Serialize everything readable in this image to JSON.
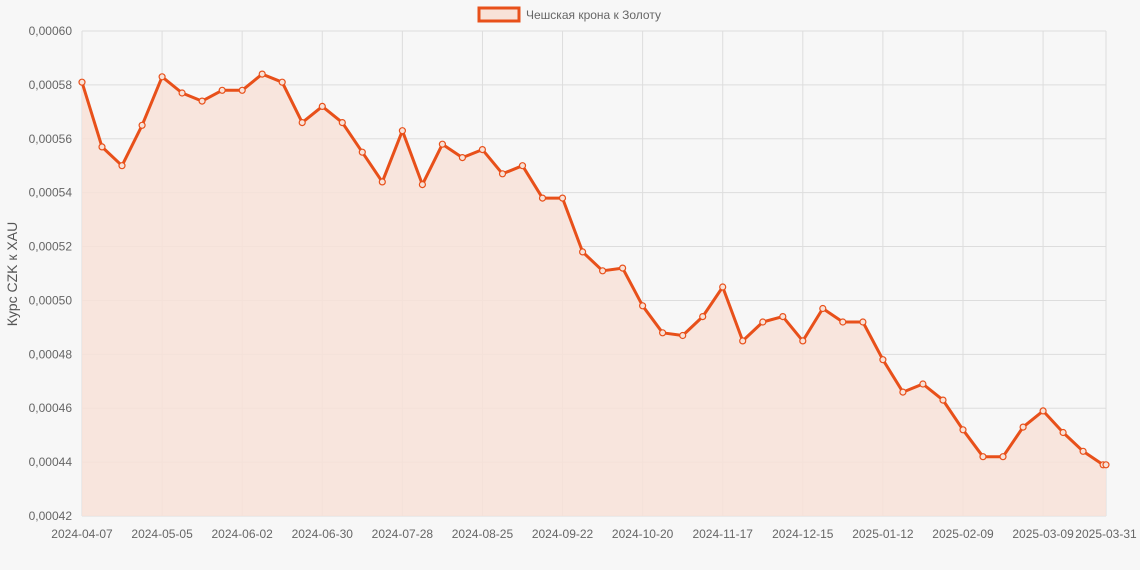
{
  "chart_data": {
    "type": "area",
    "title": "",
    "xlabel": "",
    "ylabel": "Курс CZK к XAU",
    "ylim": [
      0.00042,
      0.0006
    ],
    "y_ticks": [
      "0,00042",
      "0,00044",
      "0,00046",
      "0,00048",
      "0,00050",
      "0,00052",
      "0,00054",
      "0,00056",
      "0,00058",
      "0,00060"
    ],
    "x_tick_labels": [
      "2024-04-07",
      "2024-05-05",
      "2024-06-02",
      "2024-06-30",
      "2024-07-28",
      "2024-08-25",
      "2024-09-22",
      "2024-10-20",
      "2024-11-17",
      "2024-12-15",
      "2025-01-12",
      "2025-02-09",
      "2025-03-09",
      "2025-03-31"
    ],
    "grid": true,
    "legend_position": "top",
    "series": [
      {
        "name": "Чешская крона к Золоту",
        "color": "#e8501a",
        "fill_color": "#f8e2d8",
        "x": [
          "2024-04-07",
          "2024-04-14",
          "2024-04-21",
          "2024-04-28",
          "2024-05-05",
          "2024-05-12",
          "2024-05-19",
          "2024-05-26",
          "2024-06-02",
          "2024-06-09",
          "2024-06-16",
          "2024-06-23",
          "2024-06-30",
          "2024-07-07",
          "2024-07-14",
          "2024-07-21",
          "2024-07-28",
          "2024-08-04",
          "2024-08-11",
          "2024-08-18",
          "2024-08-25",
          "2024-09-01",
          "2024-09-08",
          "2024-09-15",
          "2024-09-22",
          "2024-09-29",
          "2024-10-06",
          "2024-10-13",
          "2024-10-20",
          "2024-10-27",
          "2024-11-03",
          "2024-11-10",
          "2024-11-17",
          "2024-11-24",
          "2024-12-01",
          "2024-12-08",
          "2024-12-15",
          "2024-12-22",
          "2024-12-29",
          "2025-01-05",
          "2025-01-12",
          "2025-01-19",
          "2025-01-26",
          "2025-02-02",
          "2025-02-09",
          "2025-02-16",
          "2025-02-23",
          "2025-03-02",
          "2025-03-09",
          "2025-03-16",
          "2025-03-23",
          "2025-03-30",
          "2025-03-31"
        ],
        "values": [
          0.000581,
          0.000557,
          0.00055,
          0.000565,
          0.000583,
          0.000577,
          0.000574,
          0.000578,
          0.000578,
          0.000584,
          0.000581,
          0.000566,
          0.000572,
          0.000566,
          0.000555,
          0.000544,
          0.000563,
          0.000543,
          0.000558,
          0.000553,
          0.000556,
          0.000547,
          0.00055,
          0.000538,
          0.000538,
          0.000518,
          0.000511,
          0.000512,
          0.000498,
          0.000488,
          0.000487,
          0.000494,
          0.000505,
          0.000485,
          0.000492,
          0.000494,
          0.000485,
          0.000497,
          0.000492,
          0.000492,
          0.000478,
          0.000466,
          0.000469,
          0.000463,
          0.000452,
          0.000442,
          0.000442,
          0.000453,
          0.000459,
          0.000451,
          0.000444,
          0.000439,
          0.000439
        ]
      }
    ]
  }
}
